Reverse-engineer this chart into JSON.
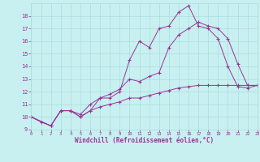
{
  "bg_color": "#c8f0f0",
  "grid_color": "#aadddd",
  "line_color": "#993399",
  "marker": "+",
  "xlabel": "Windchill (Refroidissement éolien,°C)",
  "ylim": [
    9,
    19
  ],
  "xlim": [
    0,
    23
  ],
  "yticks": [
    9,
    10,
    11,
    12,
    13,
    14,
    15,
    16,
    17,
    18
  ],
  "xticks": [
    0,
    1,
    2,
    3,
    4,
    5,
    6,
    7,
    8,
    9,
    10,
    11,
    12,
    13,
    14,
    15,
    16,
    17,
    18,
    19,
    20,
    21,
    22,
    23
  ],
  "series": [
    {
      "x": [
        0,
        1,
        2,
        3,
        4,
        5,
        6,
        7,
        8,
        9,
        10,
        11,
        12,
        13,
        14,
        15,
        16,
        17,
        18,
        19,
        20,
        21,
        22,
        23
      ],
      "y": [
        10,
        9.6,
        9.3,
        10.5,
        10.5,
        10.0,
        10.5,
        11.5,
        11.5,
        12.0,
        14.5,
        16.0,
        15.5,
        17.0,
        17.2,
        18.3,
        18.8,
        17.2,
        17.0,
        16.2,
        14.0,
        12.4,
        12.3,
        12.5
      ]
    },
    {
      "x": [
        0,
        2,
        3,
        4,
        5,
        6,
        7,
        8,
        9,
        10,
        11,
        12,
        13,
        14,
        15,
        16,
        17,
        18,
        19,
        20,
        21,
        22,
        23
      ],
      "y": [
        10,
        9.3,
        10.5,
        10.5,
        10.2,
        11.0,
        11.5,
        11.8,
        12.2,
        13.0,
        12.8,
        13.2,
        13.5,
        15.5,
        16.5,
        17.0,
        17.5,
        17.2,
        17.0,
        16.2,
        14.2,
        12.5,
        12.5
      ]
    },
    {
      "x": [
        0,
        2,
        3,
        4,
        5,
        6,
        7,
        8,
        9,
        10,
        11,
        12,
        13,
        14,
        15,
        16,
        17,
        18,
        19,
        20,
        21,
        22,
        23
      ],
      "y": [
        10,
        9.3,
        10.5,
        10.5,
        10.0,
        10.5,
        10.8,
        11.0,
        11.2,
        11.5,
        11.5,
        11.7,
        11.9,
        12.1,
        12.3,
        12.4,
        12.5,
        12.5,
        12.5,
        12.5,
        12.5,
        12.5,
        12.5
      ]
    }
  ]
}
